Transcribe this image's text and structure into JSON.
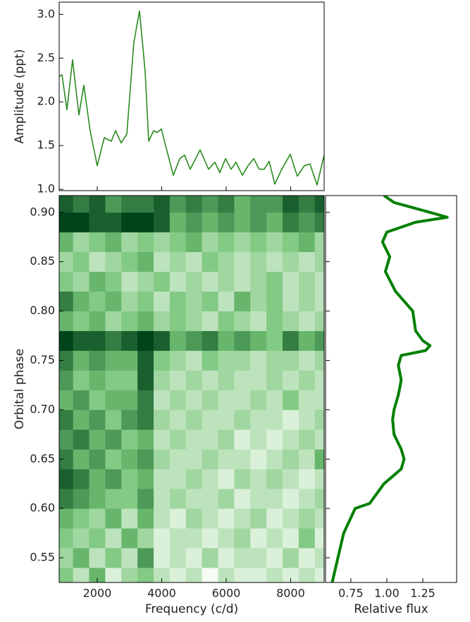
{
  "chart_data": [
    {
      "type": "line",
      "ylabel": "Amplitude (ppt)",
      "color": "#2a8a1e",
      "x": [
        820,
        907,
        1060,
        1235,
        1432,
        1585,
        1781,
        2000,
        2219,
        2437,
        2568,
        2743,
        2918,
        3137,
        3312,
        3486,
        3596,
        3749,
        3858,
        3989,
        4142,
        4361,
        4558,
        4711,
        4886,
        5192,
        5454,
        5651,
        5804,
        5979,
        6153,
        6306,
        6503,
        6678,
        6853,
        7027,
        7181,
        7334,
        7509,
        7727,
        7989,
        8208,
        8426,
        8601,
        8820,
        9039
      ],
      "y": [
        2.29,
        2.31,
        1.91,
        2.48,
        1.85,
        2.19,
        1.67,
        1.27,
        1.59,
        1.55,
        1.67,
        1.53,
        1.63,
        2.68,
        3.04,
        2.35,
        1.55,
        1.67,
        1.65,
        1.69,
        1.47,
        1.16,
        1.35,
        1.39,
        1.23,
        1.45,
        1.23,
        1.31,
        1.19,
        1.35,
        1.23,
        1.31,
        1.16,
        1.27,
        1.35,
        1.23,
        1.23,
        1.32,
        1.06,
        1.23,
        1.4,
        1.15,
        1.27,
        1.29,
        1.05,
        1.39
      ],
      "xlim": [
        820,
        9040
      ],
      "ylim": [
        0.985,
        3.14
      ],
      "xticks": [
        2000,
        4000,
        6000,
        8000
      ],
      "xtick_labels": false,
      "yticks": [
        {
          "value": 1,
          "label": "1.0"
        },
        1.5,
        {
          "value": 2,
          "label": "2.0"
        },
        2.5,
        {
          "value": 3,
          "label": "3.0"
        }
      ]
    },
    {
      "type": "heatmap",
      "xlabel": "Frequency (c/d)",
      "ylabel": "Orbital phase",
      "colormap": [
        "#f7fcf5",
        "#74c476",
        "#00441b"
      ],
      "x": [
        1000,
        1500,
        2000,
        2500,
        3000,
        3500,
        4000,
        4500,
        5000,
        5500,
        6000,
        6500,
        7000,
        7500,
        8000,
        8500,
        9000
      ],
      "y": [
        0.53,
        0.55,
        0.57,
        0.59,
        0.61,
        0.63,
        0.65,
        0.67,
        0.69,
        0.71,
        0.73,
        0.75,
        0.77,
        0.79,
        0.81,
        0.83,
        0.85,
        0.87,
        0.89,
        0.91
      ],
      "z": [
        [
          0.5,
          0.3,
          0.6,
          0.2,
          0.4,
          0.5,
          0.3,
          0.2,
          0.3,
          0.1,
          0.3,
          0.2,
          0.2,
          0.3,
          0.2,
          0.3,
          0.2
        ],
        [
          0.4,
          0.6,
          0.3,
          0.5,
          0.3,
          0.7,
          0.2,
          0.3,
          0.2,
          0.4,
          0.2,
          0.3,
          0.3,
          0.2,
          0.4,
          0.2,
          0.3
        ],
        [
          0.5,
          0.4,
          0.5,
          0.3,
          0.6,
          0.4,
          0.2,
          0.3,
          0.3,
          0.2,
          0.3,
          0.4,
          0.2,
          0.3,
          0.2,
          0.5,
          0.2
        ],
        [
          0.6,
          0.5,
          0.4,
          0.6,
          0.3,
          0.6,
          0.3,
          0.2,
          0.4,
          0.3,
          0.2,
          0.3,
          0.4,
          0.2,
          0.3,
          0.4,
          0.3
        ],
        [
          0.8,
          0.7,
          0.6,
          0.5,
          0.5,
          0.7,
          0.3,
          0.4,
          0.3,
          0.3,
          0.4,
          0.2,
          0.3,
          0.3,
          0.2,
          0.3,
          0.4
        ],
        [
          0.9,
          0.8,
          0.6,
          0.7,
          0.5,
          0.6,
          0.3,
          0.3,
          0.4,
          0.3,
          0.2,
          0.4,
          0.3,
          0.4,
          0.3,
          0.2,
          0.3
        ],
        [
          0.8,
          0.6,
          0.7,
          0.5,
          0.6,
          0.7,
          0.4,
          0.3,
          0.3,
          0.4,
          0.3,
          0.3,
          0.2,
          0.3,
          0.4,
          0.3,
          0.6
        ],
        [
          0.7,
          0.8,
          0.6,
          0.7,
          0.5,
          0.6,
          0.3,
          0.4,
          0.3,
          0.3,
          0.4,
          0.2,
          0.3,
          0.2,
          0.3,
          0.4,
          0.3
        ],
        [
          0.8,
          0.6,
          0.7,
          0.5,
          0.7,
          0.8,
          0.4,
          0.3,
          0.4,
          0.3,
          0.3,
          0.4,
          0.3,
          0.3,
          0.2,
          0.3,
          0.4
        ],
        [
          0.6,
          0.7,
          0.5,
          0.6,
          0.6,
          0.8,
          0.3,
          0.4,
          0.3,
          0.4,
          0.3,
          0.3,
          0.4,
          0.3,
          0.5,
          0.3,
          0.3
        ],
        [
          0.7,
          0.5,
          0.6,
          0.5,
          0.5,
          0.9,
          0.4,
          0.3,
          0.4,
          0.3,
          0.4,
          0.3,
          0.3,
          0.4,
          0.3,
          0.4,
          0.3
        ],
        [
          0.8,
          0.6,
          0.7,
          0.6,
          0.6,
          0.9,
          0.5,
          0.4,
          0.3,
          0.5,
          0.4,
          0.4,
          0.3,
          0.4,
          0.4,
          0.3,
          0.4
        ],
        [
          1,
          0.9,
          0.9,
          0.8,
          0.9,
          1,
          0.9,
          0.6,
          0.7,
          0.8,
          0.6,
          0.7,
          0.6,
          0.5,
          0.8,
          0.6,
          0.7
        ],
        [
          0.6,
          0.5,
          0.6,
          0.4,
          0.5,
          0.6,
          0.4,
          0.5,
          0.4,
          0.3,
          0.5,
          0.4,
          0.3,
          0.5,
          0.4,
          0.3,
          0.4
        ],
        [
          0.8,
          0.6,
          0.5,
          0.6,
          0.4,
          0.5,
          0.3,
          0.5,
          0.4,
          0.5,
          0.3,
          0.6,
          0.4,
          0.5,
          0.3,
          0.4,
          0.3
        ],
        [
          0.5,
          0.4,
          0.6,
          0.5,
          0.3,
          0.4,
          0.5,
          0.3,
          0.4,
          0.3,
          0.4,
          0.3,
          0.4,
          0.5,
          0.3,
          0.4,
          0.3
        ],
        [
          0.4,
          0.5,
          0.3,
          0.4,
          0.5,
          0.6,
          0.3,
          0.4,
          0.3,
          0.5,
          0.4,
          0.3,
          0.4,
          0.3,
          0.4,
          0.3,
          0.4
        ],
        [
          0.6,
          0.4,
          0.5,
          0.6,
          0.4,
          0.5,
          0.4,
          0.5,
          0.6,
          0.4,
          0.5,
          0.4,
          0.5,
          0.4,
          0.5,
          0.6,
          0.4
        ],
        [
          1,
          1,
          0.9,
          0.9,
          1,
          1,
          0.9,
          0.6,
          0.7,
          0.6,
          0.7,
          0.6,
          0.7,
          0.6,
          0.8,
          0.7,
          0.8
        ],
        [
          0.9,
          0.8,
          0.9,
          0.7,
          0.8,
          0.8,
          0.9,
          0.7,
          0.8,
          0.7,
          0.8,
          0.6,
          0.7,
          0.7,
          0.9,
          0.8,
          0.9
        ]
      ],
      "xlim": [
        820,
        9040
      ],
      "ylim": [
        0.525,
        0.917
      ],
      "xticks": [
        2000,
        4000,
        6000,
        8000
      ],
      "yticks": [
        0.55,
        {
          "value": 0.6,
          "label": "0.60"
        },
        0.65,
        {
          "value": 0.7,
          "label": "0.70"
        },
        0.75,
        {
          "value": 0.8,
          "label": "0.80"
        },
        0.85,
        {
          "value": 0.9,
          "label": "0.90"
        }
      ]
    },
    {
      "type": "line",
      "xlabel": "Relative flux",
      "color": "#008000",
      "x": [
        0.62,
        0.66,
        0.7,
        0.78,
        0.88,
        0.93,
        0.98,
        1.1,
        1.12,
        1.1,
        1.05,
        1.04,
        1.05,
        1.08,
        1.1,
        1.08,
        1.1,
        1.27,
        1.3,
        1.25,
        1.2,
        1.18,
        1.06,
        0.99,
        1.02,
        0.97,
        1.0,
        1.2,
        1.42,
        1.3,
        1.05,
        0.98
      ],
      "y": [
        0.525,
        0.55,
        0.575,
        0.6,
        0.605,
        0.615,
        0.625,
        0.64,
        0.65,
        0.66,
        0.675,
        0.69,
        0.7,
        0.715,
        0.73,
        0.745,
        0.755,
        0.76,
        0.765,
        0.77,
        0.78,
        0.8,
        0.82,
        0.84,
        0.855,
        0.87,
        0.88,
        0.89,
        0.895,
        0.9,
        0.91,
        0.917
      ],
      "xlim": [
        0.574,
        1.485
      ],
      "ylim": [
        0.525,
        0.917
      ],
      "xticks": [
        0.75,
        {
          "value": 1,
          "label": "1.00"
        },
        1.25
      ],
      "yticks": [
        0.55,
        0.6,
        0.65,
        0.7,
        0.75,
        0.8,
        0.85,
        0.9
      ],
      "ytick_labels": false
    }
  ]
}
